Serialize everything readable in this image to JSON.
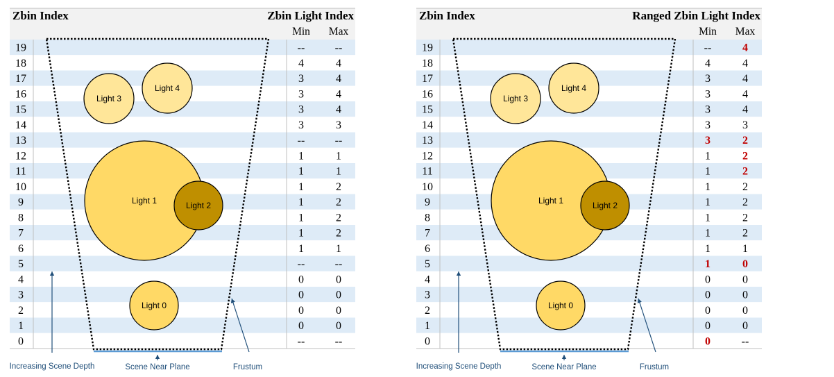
{
  "panels": [
    {
      "title": "Zbin Index",
      "right_title": "Zbin Light Index",
      "min_label": "Min",
      "max_label": "Max",
      "rows": [
        {
          "idx": "19",
          "min": "--",
          "max": "--",
          "min_red": false,
          "max_red": false
        },
        {
          "idx": "18",
          "min": "4",
          "max": "4",
          "min_red": false,
          "max_red": false
        },
        {
          "idx": "17",
          "min": "3",
          "max": "4",
          "min_red": false,
          "max_red": false
        },
        {
          "idx": "16",
          "min": "3",
          "max": "4",
          "min_red": false,
          "max_red": false
        },
        {
          "idx": "15",
          "min": "3",
          "max": "4",
          "min_red": false,
          "max_red": false
        },
        {
          "idx": "14",
          "min": "3",
          "max": "3",
          "min_red": false,
          "max_red": false
        },
        {
          "idx": "13",
          "min": "--",
          "max": "--",
          "min_red": false,
          "max_red": false
        },
        {
          "idx": "12",
          "min": "1",
          "max": "1",
          "min_red": false,
          "max_red": false
        },
        {
          "idx": "11",
          "min": "1",
          "max": "1",
          "min_red": false,
          "max_red": false
        },
        {
          "idx": "10",
          "min": "1",
          "max": "2",
          "min_red": false,
          "max_red": false
        },
        {
          "idx": "9",
          "min": "1",
          "max": "2",
          "min_red": false,
          "max_red": false
        },
        {
          "idx": "8",
          "min": "1",
          "max": "2",
          "min_red": false,
          "max_red": false
        },
        {
          "idx": "7",
          "min": "1",
          "max": "2",
          "min_red": false,
          "max_red": false
        },
        {
          "idx": "6",
          "min": "1",
          "max": "1",
          "min_red": false,
          "max_red": false
        },
        {
          "idx": "5",
          "min": "--",
          "max": "--",
          "min_red": false,
          "max_red": false
        },
        {
          "idx": "4",
          "min": "0",
          "max": "0",
          "min_red": false,
          "max_red": false
        },
        {
          "idx": "3",
          "min": "0",
          "max": "0",
          "min_red": false,
          "max_red": false
        },
        {
          "idx": "2",
          "min": "0",
          "max": "0",
          "min_red": false,
          "max_red": false
        },
        {
          "idx": "1",
          "min": "0",
          "max": "0",
          "min_red": false,
          "max_red": false
        },
        {
          "idx": "0",
          "min": "--",
          "max": "--",
          "min_red": false,
          "max_red": false
        }
      ]
    },
    {
      "title": "Zbin Index",
      "right_title": "Ranged Zbin Light Index",
      "min_label": "Min",
      "max_label": "Max",
      "rows": [
        {
          "idx": "19",
          "min": "--",
          "max": "4",
          "min_red": false,
          "max_red": true
        },
        {
          "idx": "18",
          "min": "4",
          "max": "4",
          "min_red": false,
          "max_red": false
        },
        {
          "idx": "17",
          "min": "3",
          "max": "4",
          "min_red": false,
          "max_red": false
        },
        {
          "idx": "16",
          "min": "3",
          "max": "4",
          "min_red": false,
          "max_red": false
        },
        {
          "idx": "15",
          "min": "3",
          "max": "4",
          "min_red": false,
          "max_red": false
        },
        {
          "idx": "14",
          "min": "3",
          "max": "3",
          "min_red": false,
          "max_red": false
        },
        {
          "idx": "13",
          "min": "3",
          "max": "2",
          "min_red": true,
          "max_red": true
        },
        {
          "idx": "12",
          "min": "1",
          "max": "2",
          "min_red": false,
          "max_red": true
        },
        {
          "idx": "11",
          "min": "1",
          "max": "2",
          "min_red": false,
          "max_red": true
        },
        {
          "idx": "10",
          "min": "1",
          "max": "2",
          "min_red": false,
          "max_red": false
        },
        {
          "idx": "9",
          "min": "1",
          "max": "2",
          "min_red": false,
          "max_red": false
        },
        {
          "idx": "8",
          "min": "1",
          "max": "2",
          "min_red": false,
          "max_red": false
        },
        {
          "idx": "7",
          "min": "1",
          "max": "2",
          "min_red": false,
          "max_red": false
        },
        {
          "idx": "6",
          "min": "1",
          "max": "1",
          "min_red": false,
          "max_red": false
        },
        {
          "idx": "5",
          "min": "1",
          "max": "0",
          "min_red": true,
          "max_red": true
        },
        {
          "idx": "4",
          "min": "0",
          "max": "0",
          "min_red": false,
          "max_red": false
        },
        {
          "idx": "3",
          "min": "0",
          "max": "0",
          "min_red": false,
          "max_red": false
        },
        {
          "idx": "2",
          "min": "0",
          "max": "0",
          "min_red": false,
          "max_red": false
        },
        {
          "idx": "1",
          "min": "0",
          "max": "0",
          "min_red": false,
          "max_red": false
        },
        {
          "idx": "0",
          "min": "0",
          "max": "--",
          "min_red": true,
          "max_red": false
        }
      ]
    }
  ],
  "lights": [
    {
      "id": "light-4",
      "label": "Light 4",
      "dark": false
    },
    {
      "id": "light-3",
      "label": "Light 3",
      "dark": false
    },
    {
      "id": "light-1",
      "label": "Light 1",
      "dark": false
    },
    {
      "id": "light-2",
      "label": "Light 2",
      "dark": true
    },
    {
      "id": "light-0",
      "label": "Light 0",
      "dark": false
    }
  ],
  "annotations": {
    "depth": "Increasing Scene Depth",
    "near_plane": "Scene Near Plane",
    "frustum": "Frustum"
  },
  "colors": {
    "stripe": "#DEEBF7",
    "header": "#F2F2F2",
    "light": "#FFD966",
    "light_small": "#FFE699",
    "light_dark": "#BF8F00",
    "red": "#C00000",
    "annotation": "#1F4E79",
    "near_plane": "#5B9BD5"
  }
}
